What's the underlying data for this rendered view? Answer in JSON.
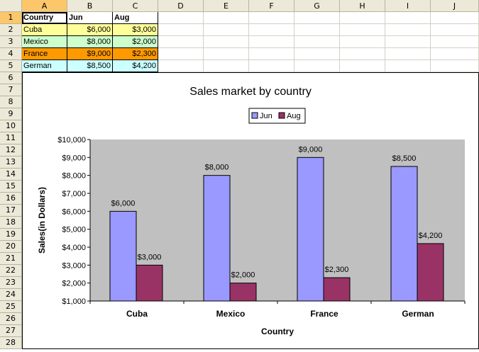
{
  "sheet": {
    "columns": [
      "A",
      "B",
      "C",
      "D",
      "E",
      "F",
      "G",
      "H",
      "I",
      "J"
    ],
    "rows": [
      "1",
      "2",
      "3",
      "4",
      "5",
      "6",
      "7",
      "8",
      "9",
      "10",
      "11",
      "12",
      "13",
      "14",
      "15",
      "16",
      "17",
      "18",
      "19",
      "20",
      "21",
      "22",
      "23",
      "24",
      "25",
      "26",
      "27",
      "28"
    ],
    "header_row": {
      "country": "Country",
      "jun": "Jun",
      "aug": "Aug"
    },
    "data_rows": [
      {
        "country": "Cuba",
        "jun": "$6,000",
        "aug": "$3,000",
        "bg": "#ffff99"
      },
      {
        "country": "Mexico",
        "jun": "$8,000",
        "aug": "$2,000",
        "bg": "#ccffcc"
      },
      {
        "country": "France",
        "jun": "$9,000",
        "aug": "$2,300",
        "bg": "#ff9900"
      },
      {
        "country": "German",
        "jun": "$8,500",
        "aug": "$4,200",
        "bg": "#ccffff"
      }
    ]
  },
  "chart_data": {
    "type": "bar",
    "title": "Sales market by country",
    "xlabel": "Country",
    "ylabel": "Sales(in Dollars)",
    "categories": [
      "Cuba",
      "Mexico",
      "France",
      "German"
    ],
    "series": [
      {
        "name": "Jun",
        "values": [
          6000,
          8000,
          9000,
          8500
        ],
        "color": "#9999ff",
        "labels": [
          "$6,000",
          "$8,000",
          "$9,000",
          "$8,500"
        ]
      },
      {
        "name": "Aug",
        "values": [
          3000,
          2000,
          2300,
          4200
        ],
        "color": "#993366",
        "labels": [
          "$3,000",
          "$2,000",
          "$2,300",
          "$4,200"
        ]
      }
    ],
    "ylim": [
      1000,
      10000
    ],
    "ytick_labels": [
      "$1,000",
      "$2,000",
      "$3,000",
      "$4,000",
      "$5,000",
      "$6,000",
      "$7,000",
      "$8,000",
      "$9,000",
      "$10,000"
    ],
    "plot_background": "#c0c0c0",
    "legend_placement": "top"
  }
}
